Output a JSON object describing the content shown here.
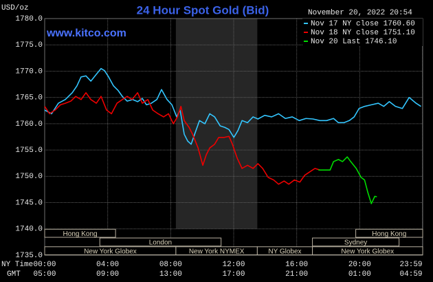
{
  "chart_data": {
    "type": "line",
    "title": "24 Hour Spot Gold (Bid)",
    "watermark": "www.kitco.com",
    "timestamp": "November 20, 2022 20:54",
    "ylabel": "USD/oz",
    "xlabel": "NY Time",
    "x2label": "GMT",
    "xlim": [
      0,
      24
    ],
    "ylim": [
      1735,
      1780
    ],
    "yticks": [
      {
        "value": 1735,
        "label": "1735.0"
      },
      {
        "value": 1740,
        "label": "1740.0"
      },
      {
        "value": 1745,
        "label": "1745.0"
      },
      {
        "value": 1750,
        "label": "1750.0"
      },
      {
        "value": 1755,
        "label": "1755.0"
      },
      {
        "value": 1760,
        "label": "1760.0"
      },
      {
        "value": 1765,
        "label": "1765.0"
      },
      {
        "value": 1770,
        "label": "1770.0"
      },
      {
        "value": 1775,
        "label": "1775.0"
      },
      {
        "value": 1780,
        "label": "1780.0"
      }
    ],
    "xticks": [
      {
        "value": 0,
        "label": "00:00"
      },
      {
        "value": 4,
        "label": "04:00"
      },
      {
        "value": 8,
        "label": "08:00"
      },
      {
        "value": 12,
        "label": "12:00"
      },
      {
        "value": 16,
        "label": "16:00"
      },
      {
        "value": 20,
        "label": "20:00"
      },
      {
        "value": 23.98,
        "label": "23:59"
      }
    ],
    "x2ticks": [
      {
        "value": 0,
        "label": "05:00"
      },
      {
        "value": 4,
        "label": "09:00"
      },
      {
        "value": 8,
        "label": "13:00"
      },
      {
        "value": 12,
        "label": "17:00"
      },
      {
        "value": 16,
        "label": "21:00"
      },
      {
        "value": 20,
        "label": "01:00"
      },
      {
        "value": 23.98,
        "label": "04:59"
      }
    ],
    "grid": true,
    "shade": [
      8.33,
      13.5
    ],
    "session_rows": [
      [
        {
          "label": "Hong Kong",
          "start": 0,
          "end": 4.5
        },
        {
          "label": "Hong Kong",
          "start": 19.75,
          "end": 24
        }
      ],
      [
        {
          "label": "London",
          "start": 3.5,
          "end": 11.2
        },
        {
          "label": "Sydney",
          "start": 17,
          "end": 22.5
        }
      ],
      [
        {
          "label": "New York Globex",
          "start": 0,
          "end": 8.33
        },
        {
          "label": "New York NYMEX",
          "start": 8.33,
          "end": 13.5
        },
        {
          "label": "NY Globex",
          "start": 13.5,
          "end": 17
        },
        {
          "label": "New York Globex",
          "start": 17,
          "end": 24
        }
      ]
    ],
    "series": [
      {
        "name": "Nov 17 NY close 1760.60",
        "color": "#33c6ff",
        "x": [
          0,
          0.44,
          0.87,
          1.31,
          1.75,
          2.05,
          2.31,
          2.62,
          2.93,
          3.28,
          3.58,
          3.8,
          4.06,
          4.37,
          4.67,
          4.93,
          5.24,
          5.59,
          5.9,
          6.2,
          6.46,
          6.77,
          7.12,
          7.42,
          7.77,
          8.08,
          8.38,
          8.6,
          8.86,
          9.08,
          9.3,
          9.52,
          9.83,
          10.17,
          10.48,
          10.79,
          11.14,
          11.44,
          11.7,
          12.01,
          12.27,
          12.53,
          12.88,
          13.23,
          13.54,
          13.97,
          14.41,
          14.85,
          15.28,
          15.72,
          16.16,
          16.59,
          17.03,
          17.47,
          17.9,
          18.34,
          18.65,
          19.0,
          19.34,
          19.65,
          19.96,
          20.31,
          20.74,
          21.18,
          21.53,
          21.88,
          22.27,
          22.71,
          23.14,
          23.58,
          23.89
        ],
        "values": [
          1762.6,
          1761.9,
          1763.9,
          1764.6,
          1765.9,
          1767.2,
          1768.9,
          1769.1,
          1768.1,
          1769.4,
          1770.5,
          1770.1,
          1768.9,
          1767.2,
          1766.3,
          1765.2,
          1764.3,
          1764.6,
          1764.2,
          1764.8,
          1763.6,
          1763.9,
          1764.6,
          1766.5,
          1764.6,
          1763.6,
          1761.3,
          1762.6,
          1758.0,
          1756.7,
          1756.1,
          1758.0,
          1760.6,
          1760.0,
          1761.9,
          1761.3,
          1759.6,
          1759.3,
          1758.9,
          1757.4,
          1758.7,
          1760.6,
          1760.2,
          1761.3,
          1760.9,
          1761.6,
          1761.3,
          1761.9,
          1761.0,
          1761.3,
          1760.6,
          1761.0,
          1760.9,
          1760.6,
          1760.6,
          1761.0,
          1760.2,
          1760.2,
          1760.6,
          1761.3,
          1762.9,
          1763.3,
          1763.6,
          1763.9,
          1763.3,
          1764.2,
          1763.3,
          1762.9,
          1765.0,
          1763.9,
          1763.3
        ]
      },
      {
        "name": "Nov 18 NY close 1751.10",
        "color": "#ee0000",
        "x": [
          0,
          0.31,
          0.66,
          1.0,
          1.31,
          1.66,
          1.97,
          2.31,
          2.62,
          2.93,
          3.28,
          3.58,
          3.93,
          4.24,
          4.59,
          4.93,
          5.24,
          5.55,
          5.9,
          6.2,
          6.55,
          6.86,
          7.2,
          7.55,
          7.86,
          8.17,
          8.43,
          8.65,
          8.86,
          9.17,
          9.39,
          9.74,
          10.04,
          10.26,
          10.48,
          10.79,
          11.05,
          11.4,
          11.7,
          11.92,
          12.23,
          12.53,
          12.88,
          13.23,
          13.54,
          13.84,
          14.19,
          14.54,
          14.85,
          15.2,
          15.5,
          15.85,
          16.2,
          16.51,
          16.81,
          17.16,
          17.47
        ],
        "values": [
          1763.3,
          1761.9,
          1762.6,
          1763.6,
          1763.9,
          1764.3,
          1765.2,
          1764.6,
          1765.9,
          1764.6,
          1763.9,
          1765.2,
          1762.6,
          1761.9,
          1763.9,
          1764.6,
          1765.2,
          1764.6,
          1765.9,
          1763.9,
          1764.6,
          1762.6,
          1761.9,
          1761.3,
          1761.9,
          1760.0,
          1761.3,
          1763.3,
          1760.6,
          1759.3,
          1758.0,
          1755.4,
          1752.1,
          1754.1,
          1755.4,
          1756.1,
          1757.4,
          1757.4,
          1757.6,
          1756.1,
          1753.4,
          1751.5,
          1752.1,
          1751.5,
          1752.4,
          1751.5,
          1749.8,
          1749.3,
          1748.5,
          1749.1,
          1748.5,
          1749.3,
          1748.9,
          1750.2,
          1750.8,
          1751.5,
          1751.2
        ]
      },
      {
        "name": "Nov 20 Last 1746.10",
        "color": "#00dd00",
        "x": [
          17.38,
          18.12,
          18.34,
          18.65,
          18.91,
          19.21,
          19.43,
          19.78,
          20.09,
          20.31,
          20.52,
          20.74,
          20.96,
          21.09
        ],
        "values": [
          1751.2,
          1751.2,
          1752.8,
          1753.2,
          1752.8,
          1753.7,
          1752.8,
          1751.5,
          1749.8,
          1749.3,
          1746.9,
          1744.8,
          1746.2,
          1746.1
        ]
      }
    ]
  }
}
